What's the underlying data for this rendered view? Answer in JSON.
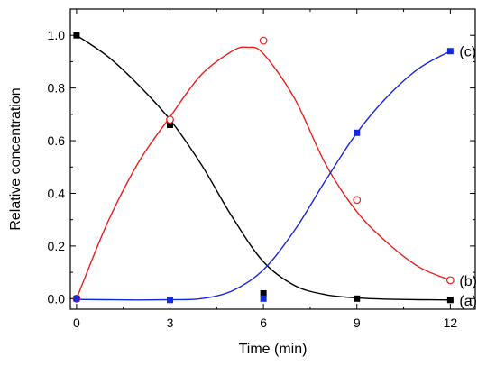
{
  "chart_data": {
    "type": "scatter",
    "xlabel": "Time (min)",
    "ylabel": "Relative concentration",
    "xlim": [
      -0.2,
      12.8
    ],
    "ylim": [
      -0.04,
      1.1
    ],
    "x_ticks": [
      "0",
      "3",
      "6",
      "9",
      "12"
    ],
    "y_ticks": [
      "0.0",
      "0.2",
      "0.4",
      "0.6",
      "0.8",
      "1.0"
    ],
    "grid": false,
    "legend": "none",
    "series": [
      {
        "label": "(a)",
        "color": "#000000",
        "marker": "filled-square",
        "points": [
          [
            0,
            1.0
          ],
          [
            3,
            0.66
          ],
          [
            6,
            0.02
          ],
          [
            9,
            0.0
          ],
          [
            12,
            -0.005
          ]
        ],
        "curve": [
          [
            0,
            1.0
          ],
          [
            1,
            0.92
          ],
          [
            2,
            0.81
          ],
          [
            3,
            0.68
          ],
          [
            4,
            0.51
          ],
          [
            5,
            0.31
          ],
          [
            6,
            0.14
          ],
          [
            7,
            0.05
          ],
          [
            8,
            0.015
          ],
          [
            9,
            0.003
          ],
          [
            10,
            -0.002
          ],
          [
            11,
            -0.004
          ],
          [
            12,
            -0.005
          ]
        ]
      },
      {
        "label": "(b)",
        "color": "#ee1c1c",
        "marker": "open-circle",
        "points": [
          [
            0,
            0.0
          ],
          [
            3,
            0.68
          ],
          [
            6,
            0.98
          ],
          [
            9,
            0.375
          ],
          [
            12,
            0.07
          ]
        ],
        "curve": [
          [
            0,
            0.0
          ],
          [
            1,
            0.29
          ],
          [
            2,
            0.52
          ],
          [
            3,
            0.69
          ],
          [
            4,
            0.85
          ],
          [
            5,
            0.94
          ],
          [
            5.5,
            0.955
          ],
          [
            6,
            0.93
          ],
          [
            7,
            0.76
          ],
          [
            8,
            0.51
          ],
          [
            9,
            0.33
          ],
          [
            10,
            0.21
          ],
          [
            11,
            0.12
          ],
          [
            12,
            0.07
          ]
        ]
      },
      {
        "label": "(c)",
        "color": "#1428e0",
        "marker": "filled-square",
        "points": [
          [
            0,
            0.0
          ],
          [
            3,
            -0.005
          ],
          [
            6,
            0.0
          ],
          [
            9,
            0.63
          ],
          [
            12,
            0.94
          ]
        ],
        "curve": [
          [
            0,
            -0.003
          ],
          [
            1,
            -0.004
          ],
          [
            2,
            -0.005
          ],
          [
            3,
            -0.004
          ],
          [
            4,
            0.0
          ],
          [
            5,
            0.03
          ],
          [
            6,
            0.11
          ],
          [
            7,
            0.26
          ],
          [
            8,
            0.45
          ],
          [
            9,
            0.63
          ],
          [
            10,
            0.77
          ],
          [
            11,
            0.875
          ],
          [
            12,
            0.94
          ]
        ]
      }
    ]
  }
}
